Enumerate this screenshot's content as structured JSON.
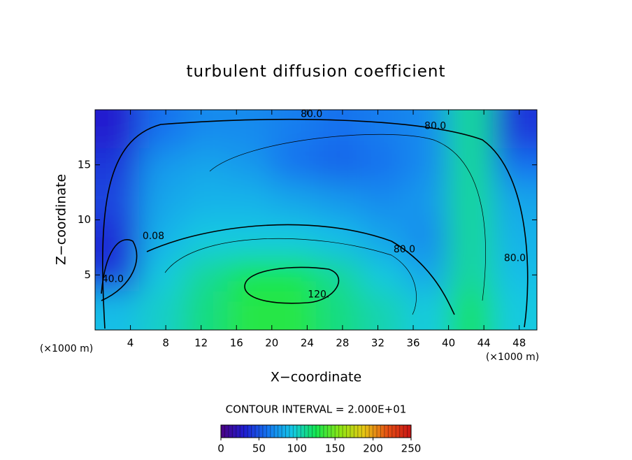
{
  "chart_data": {
    "type": "contour",
    "title": "turbulent diffusion coefficient",
    "x_label": "X−coordinate",
    "y_label": "Z−coordinate",
    "x_unit": "(×1000 m)",
    "y_unit": "(×1000 m)",
    "xlim": [
      0,
      50
    ],
    "ylim": [
      0,
      20
    ],
    "xticks": [
      4,
      8,
      12,
      16,
      20,
      24,
      28,
      32,
      36,
      40,
      44,
      48
    ],
    "yticks": [
      5,
      10,
      15
    ],
    "x": [
      2.5,
      7.5,
      12.5,
      17.5,
      22.5,
      27.5,
      32.5,
      37.5,
      42.5,
      47.5
    ],
    "y": [
      18,
      15,
      12,
      8,
      5,
      2
    ],
    "z": [
      [
        30,
        60,
        70,
        70,
        65,
        60,
        65,
        70,
        110,
        40
      ],
      [
        40,
        75,
        80,
        75,
        60,
        55,
        60,
        70,
        110,
        60
      ],
      [
        45,
        80,
        85,
        85,
        80,
        75,
        70,
        75,
        110,
        80
      ],
      [
        35,
        85,
        95,
        95,
        95,
        90,
        80,
        70,
        110,
        85
      ],
      [
        40,
        95,
        110,
        125,
        125,
        110,
        95,
        80,
        110,
        90
      ],
      [
        90,
        100,
        115,
        130,
        130,
        115,
        105,
        95,
        120,
        95
      ]
    ],
    "colormap": [
      "#4b0082",
      "#1e1ed2",
      "#1478f0",
      "#14c8e6",
      "#14e650",
      "#8ce614",
      "#e6c814",
      "#e65014",
      "#c81414"
    ],
    "clim": [
      0,
      250
    ],
    "cticks": [
      0,
      50,
      100,
      150,
      200,
      250
    ],
    "contour_interval_label": "CONTOUR INTERVAL = 2.000E+01",
    "annotations": [
      {
        "text": "80.0",
        "x": 24.5,
        "y": 19.6
      },
      {
        "text": "80.0",
        "x": 38.5,
        "y": 18.5
      },
      {
        "text": "0.08",
        "x": 6.6,
        "y": 8.5
      },
      {
        "text": "80.0",
        "x": 35,
        "y": 7.3
      },
      {
        "text": "80.0",
        "x": 47.5,
        "y": 6.5
      },
      {
        "text": "40.0",
        "x": 2,
        "y": 4.6
      },
      {
        "text": "120.",
        "x": 25.3,
        "y": 3.2
      }
    ]
  }
}
